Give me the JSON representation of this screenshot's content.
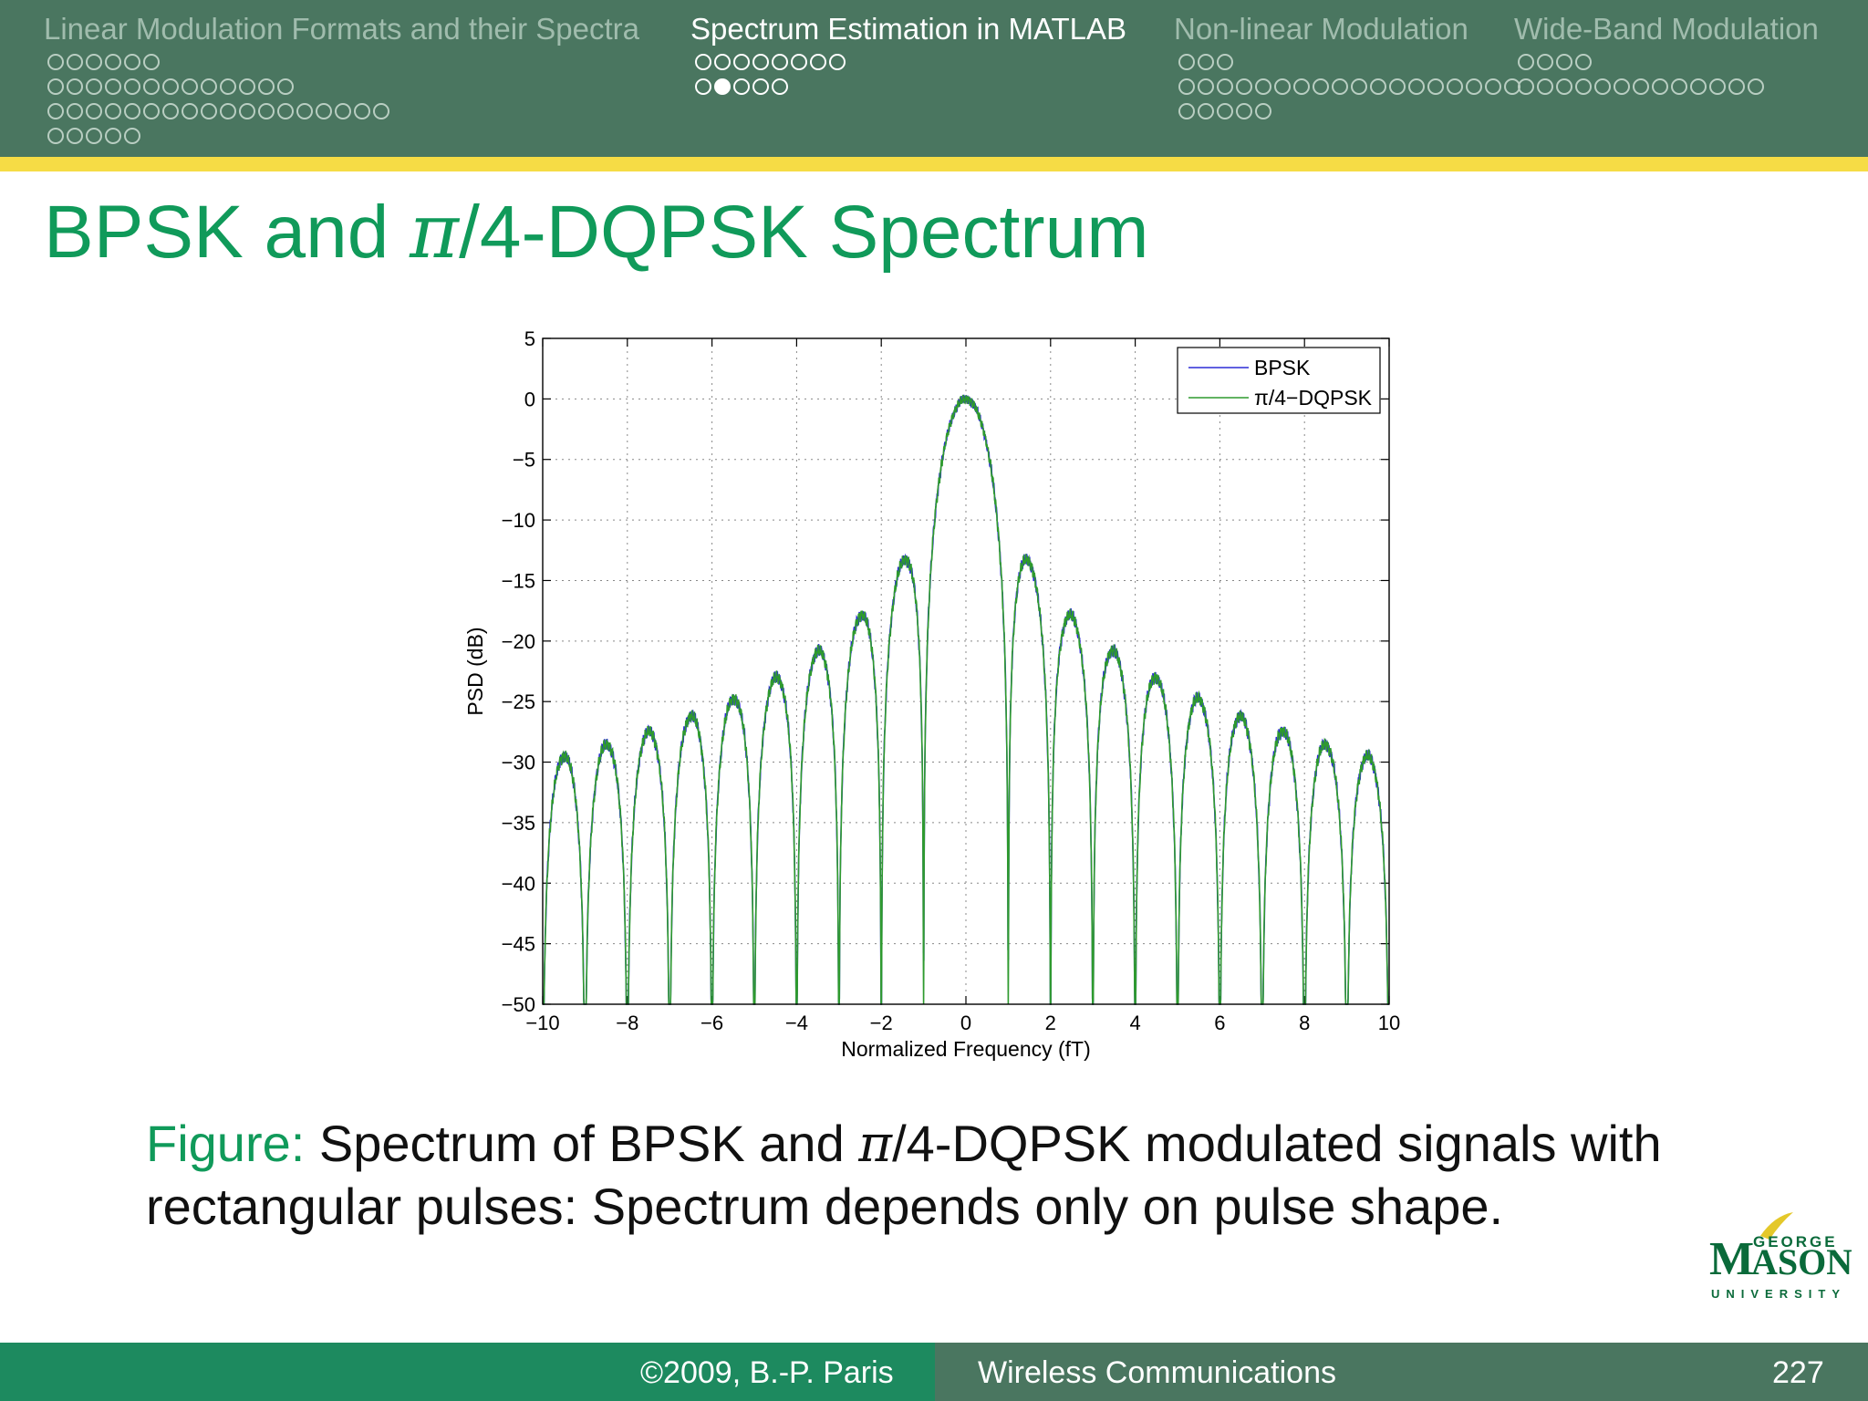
{
  "header": {
    "sections": [
      {
        "title": "Linear Modulation Formats and their Spectra",
        "active": false,
        "rows": [
          6,
          13,
          18,
          5
        ]
      },
      {
        "title": "Spectrum Estimation in MATLAB",
        "active": true,
        "rows": [
          8,
          5
        ],
        "current": [
          1,
          1
        ]
      },
      {
        "title": "Non-linear Modulation",
        "active": false,
        "rows": [
          3,
          18,
          5
        ]
      },
      {
        "title": "Wide-Band Modulation",
        "active": false,
        "rows": [
          4,
          13
        ]
      }
    ]
  },
  "slide": {
    "title_prefix": "BPSK and ",
    "title_pi": "π",
    "title_suffix": "/4-DQPSK Spectrum"
  },
  "chart_data": {
    "type": "line",
    "xlabel": "Normalized Frequency (fT)",
    "ylabel": "PSD (dB)",
    "xlim": [
      -10,
      10
    ],
    "ylim": [
      -50,
      5
    ],
    "xticks": [
      -10,
      -8,
      -6,
      -4,
      -2,
      0,
      2,
      4,
      6,
      8,
      10
    ],
    "yticks": [
      5,
      0,
      -5,
      -10,
      -15,
      -20,
      -25,
      -30,
      -35,
      -40,
      -45,
      -50
    ],
    "grid": true,
    "legend_position": "top-right",
    "series": [
      {
        "name": "BPSK",
        "color": "#2b2bd6",
        "formula": "10*log10(sinc(fT)^2)",
        "null_depth_at_fT_pm1": -44
      },
      {
        "name": "π/4−DQPSK",
        "color": "#2e9a2e",
        "formula": "10*log10(sinc(fT)^2)"
      }
    ],
    "sidelobe_peaks_db": [
      {
        "fT": 0,
        "psd": 0
      },
      {
        "fT": 1.43,
        "psd": -13.3
      },
      {
        "fT": 2.46,
        "psd": -17.8
      },
      {
        "fT": 3.47,
        "psd": -20.8
      },
      {
        "fT": 4.48,
        "psd": -22.9
      },
      {
        "fT": 5.48,
        "psd": -24.6
      },
      {
        "fT": 6.49,
        "psd": -26.0
      },
      {
        "fT": 7.49,
        "psd": -27.2
      },
      {
        "fT": 8.49,
        "psd": -28.3
      },
      {
        "fT": 9.49,
        "psd": -29.2
      }
    ]
  },
  "caption": {
    "label": "Figure:",
    "text_1": " Spectrum of BPSK and ",
    "pi": "π",
    "text_2": "/4-DQPSK modulated signals with rectangular pulses: Spectrum depends only on pulse shape."
  },
  "logo": {
    "line1": "GEORGE",
    "line2": "MASON",
    "line3": "UNIVERSITY",
    "color": "#0a6a3a",
    "accent": "#e4c82a"
  },
  "footer": {
    "copyright": "©2009, B.-P. Paris",
    "course": "Wireless Communications",
    "page": "227"
  }
}
